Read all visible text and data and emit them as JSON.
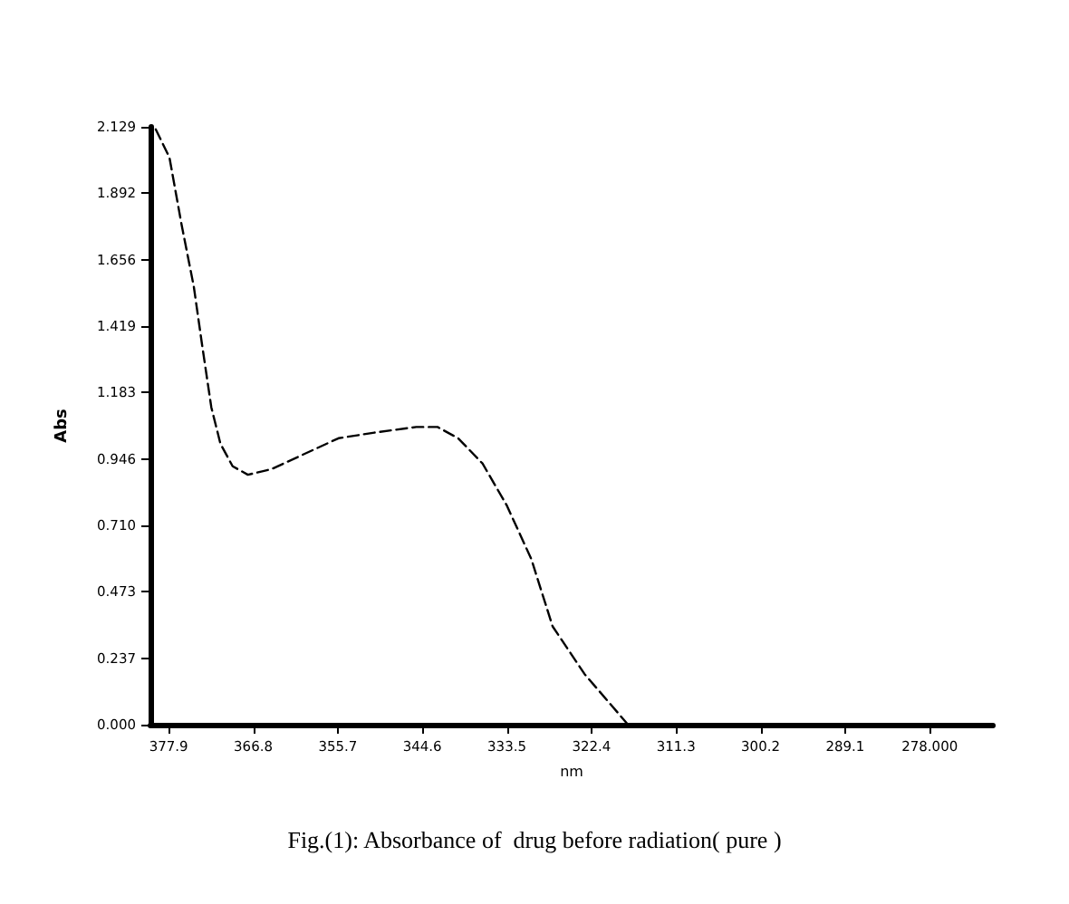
{
  "chart_data": {
    "type": "line",
    "title": "Fig.(1): Absorbance of  drug before radiation( pure )",
    "xlabel": "nm",
    "ylabel": "Abs",
    "x": [
      379.6,
      377.8,
      376.2,
      374.6,
      373.5,
      372.3,
      371.1,
      369.5,
      367.5,
      364.4,
      360.4,
      355.6,
      350.9,
      345.4,
      342.6,
      339.9,
      336.7,
      333.5,
      330.3,
      327.5,
      323.3,
      317.6,
      315.0
    ],
    "series": [
      {
        "color": "#000000",
        "values": [
          2.12,
          2.02,
          1.78,
          1.56,
          1.35,
          1.13,
          1.0,
          0.92,
          0.89,
          0.91,
          0.96,
          1.02,
          1.04,
          1.06,
          1.06,
          1.02,
          0.93,
          0.78,
          0.59,
          0.35,
          0.18,
          0.0,
          0.0
        ]
      }
    ],
    "xlim": [
      380.3,
      269.7
    ],
    "xticks": [
      {
        "value": 377.9,
        "label": "377.9"
      },
      {
        "value": 366.8,
        "label": "366.8"
      },
      {
        "value": 355.7,
        "label": "355.7"
      },
      {
        "value": 344.6,
        "label": "344.6"
      },
      {
        "value": 333.5,
        "label": "333.5"
      },
      {
        "value": 322.4,
        "label": "322.4"
      },
      {
        "value": 311.3,
        "label": "311.3"
      },
      {
        "value": 300.2,
        "label": "300.2"
      },
      {
        "value": 289.1,
        "label": "289.1"
      },
      {
        "value": 278.0,
        "label": "278.000"
      }
    ],
    "ylim": [
      0,
      2.129
    ],
    "yticks": [
      {
        "value": 0,
        "label": "0.000"
      },
      {
        "value": 0.237,
        "label": "0.237"
      },
      {
        "value": 0.473,
        "label": "0.473"
      },
      {
        "value": 0.71,
        "label": "0.710"
      },
      {
        "value": 0.946,
        "label": "0.946"
      },
      {
        "value": 1.183,
        "label": "1.183"
      },
      {
        "value": 1.419,
        "label": "1.419"
      },
      {
        "value": 1.656,
        "label": "1.656"
      },
      {
        "value": 1.892,
        "label": "1.892"
      },
      {
        "value": 2.129,
        "label": "2.129"
      }
    ],
    "grid": false,
    "marker": "none",
    "line_style": "dashed"
  }
}
